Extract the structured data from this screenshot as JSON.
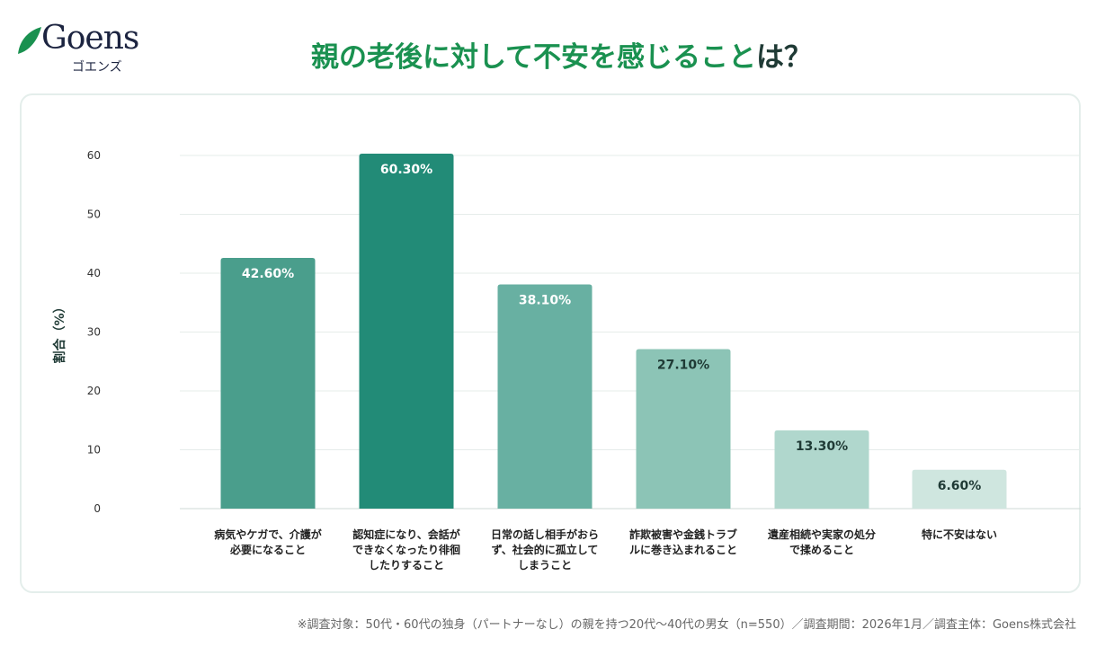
{
  "logo": {
    "text": "Goens",
    "kana": "ゴエンズ"
  },
  "title": {
    "main": "親の老後に対して不安を感じること",
    "end": "は？"
  },
  "footnote": "※調査対象：50代・60代の独身（パートナーなし）の親を持つ20代〜40代の男女（n=550）／調査期間：2026年1月／調査主体：Goens株式会社",
  "chart_data": {
    "type": "bar",
    "ylabel": "割合（%）",
    "xlabel": "",
    "ylim": [
      0,
      60
    ],
    "yticks": [
      "0",
      "10",
      "20",
      "30",
      "40",
      "50",
      "60"
    ],
    "grid": true,
    "categories": [
      [
        "病気やケガで、介護が",
        "必要になること"
      ],
      [
        "認知症になり、会話が",
        "できなくなったり徘徊",
        "したりすること"
      ],
      [
        "日常の話し相手がおら",
        "ず、社会的に孤立して",
        "しまうこと"
      ],
      [
        "詐欺被害や金銭トラブ",
        "ルに巻き込まれること"
      ],
      [
        "遺産相続や実家の処分",
        "で揉めること"
      ],
      [
        "特に不安はない"
      ]
    ],
    "values": [
      42.6,
      60.3,
      38.1,
      27.1,
      13.3,
      6.6
    ],
    "data_labels": [
      "42.60%",
      "60.30%",
      "38.10%",
      "27.10%",
      "13.30%",
      "6.60%"
    ],
    "colors": [
      "#4a9e8c",
      "#228b77",
      "#68b0a2",
      "#8cc4b6",
      "#b0d7cd",
      "#cfe6df"
    ],
    "label_colors": [
      "#ffffff",
      "#ffffff",
      "#ffffff",
      "#1f3a35",
      "#1f3a35",
      "#1f3a35"
    ]
  }
}
